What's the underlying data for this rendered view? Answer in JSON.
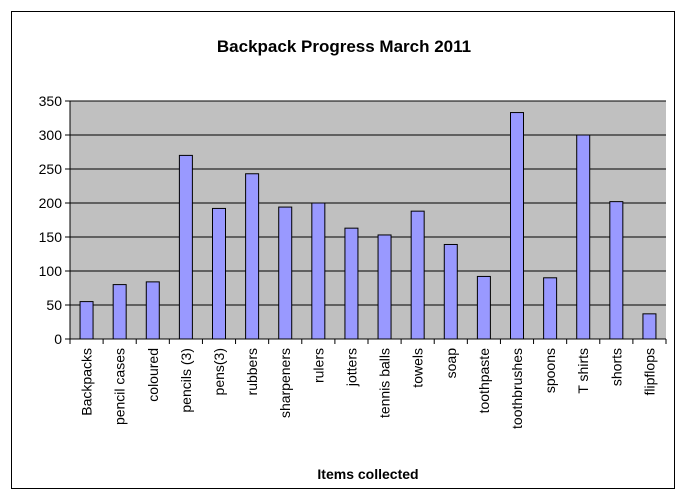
{
  "chart_data": {
    "type": "bar",
    "title": "Backpack Progress March 2011",
    "xlabel": "Items collected",
    "ylabel": "",
    "ylim": [
      0,
      350
    ],
    "yticks": [
      0,
      50,
      100,
      150,
      200,
      250,
      300,
      350
    ],
    "grid": true,
    "legend": "none",
    "categories": [
      "Backpacks",
      "pencil cases",
      "coloured",
      "pencils (3)",
      "pens(3)",
      "rubbers",
      "sharpeners",
      "rulers",
      "jotters",
      "tennis balls",
      "towels",
      "soap",
      "toothpaste",
      "toothbrushes",
      "spoons",
      "T shirts",
      "shorts",
      "flipflops"
    ],
    "values": [
      55,
      80,
      84,
      270,
      192,
      243,
      194,
      200,
      163,
      153,
      188,
      139,
      92,
      333,
      90,
      300,
      202,
      37
    ],
    "colors": {
      "plot_background": "#c0c0c0",
      "bar_fill": "#9999ff",
      "bar_stroke": "#000000",
      "gridline": "#000000"
    }
  }
}
